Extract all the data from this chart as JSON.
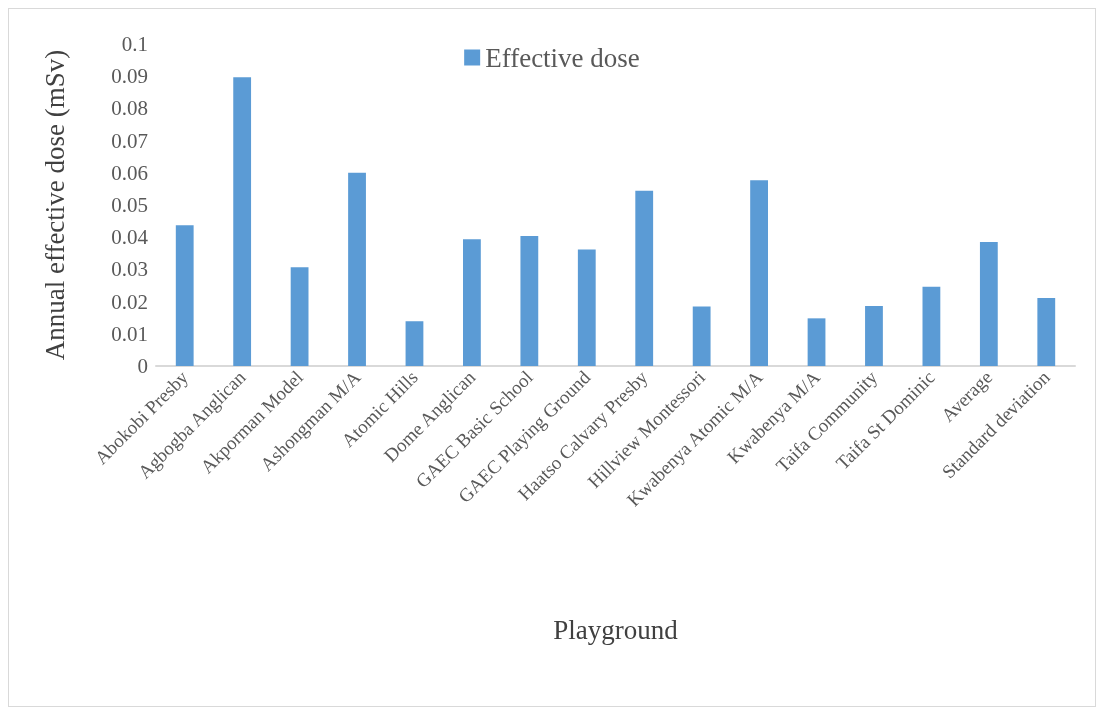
{
  "chart_data": {
    "type": "bar",
    "xlabel": "Playground",
    "ylabel": "Annual effective dose (mSv)",
    "categories": [
      "Abokobi Presby",
      "Agbogba Anglican",
      "Akporman Model",
      "Ashongman M/A",
      "Atomic Hills",
      "Dome Anglican",
      "GAEC Basic School",
      "GAEC Playing Ground",
      "Haatso Calvary Presby",
      "Hillview Montessori",
      "Kwabenya Atomic M/A",
      "Kwabenya M/A",
      "Taifa Community",
      "Taifa St Dominic",
      "Average",
      "Standard deviation"
    ],
    "series": [
      {
        "name": "Effective dose",
        "color": "#5b9bd5",
        "values": [
          0.0437,
          0.0897,
          0.0307,
          0.06,
          0.0139,
          0.0394,
          0.0404,
          0.0362,
          0.0544,
          0.0185,
          0.0577,
          0.0148,
          0.0186,
          0.0246,
          0.0385,
          0.0211
        ]
      }
    ],
    "ylim": [
      0,
      0.1
    ],
    "yticks": [
      0,
      0.01,
      0.02,
      0.03,
      0.04,
      0.05,
      0.06,
      0.07,
      0.08,
      0.09,
      0.1
    ],
    "grid": false,
    "legend": "top"
  }
}
